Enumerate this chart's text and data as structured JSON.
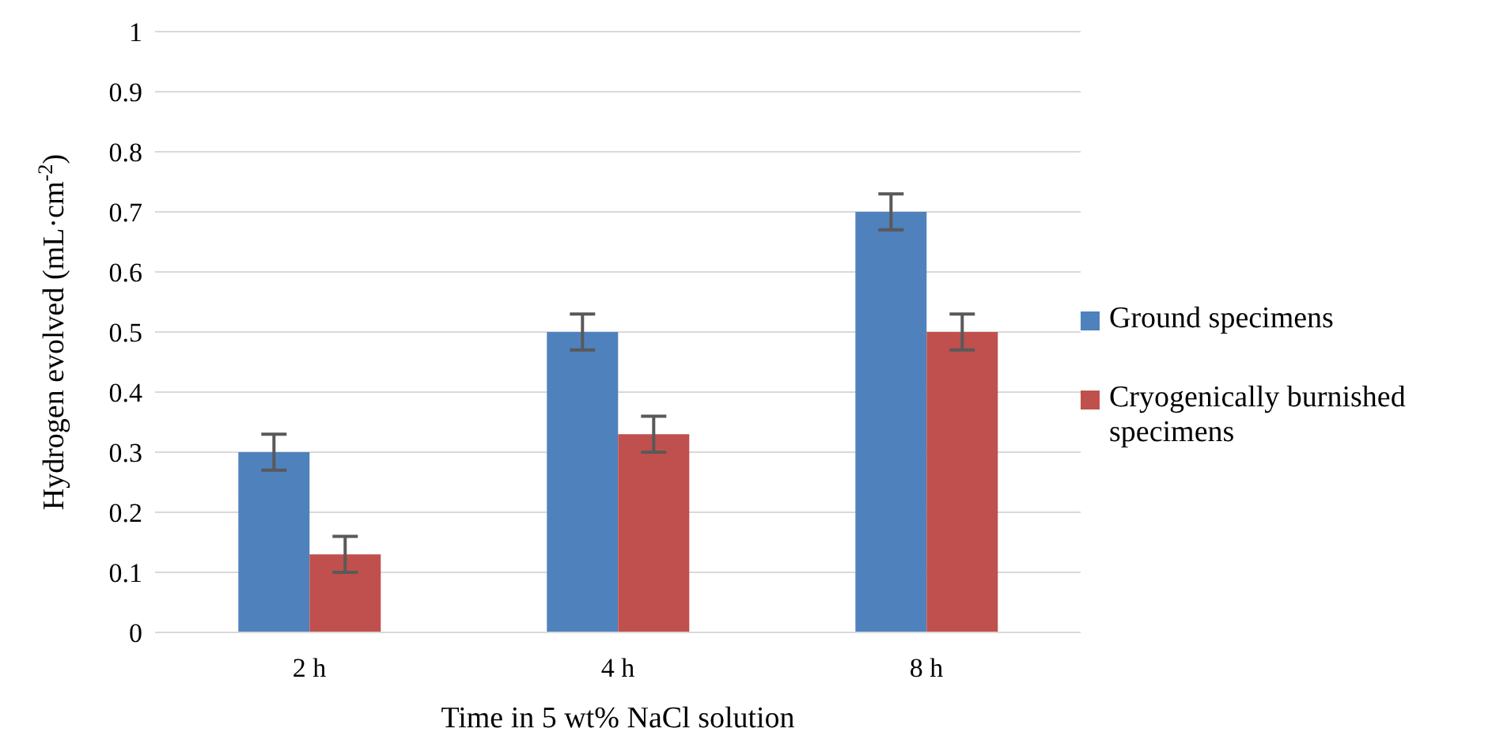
{
  "chart_data": {
    "type": "bar",
    "xlabel": "Time in 5 wt% NaCl solution",
    "ylabel": "Hydrogen evolved (mL·cm$^{-2}$)",
    "categories": [
      "2 h",
      "4 h",
      "8 h"
    ],
    "series": [
      {
        "name": "Ground specimens",
        "color": "#4f81bd",
        "values": [
          0.3,
          0.5,
          0.7
        ],
        "errors": [
          0.03,
          0.03,
          0.03
        ]
      },
      {
        "name": "Cryogenically burnished specimens",
        "color": "#c0504d",
        "values": [
          0.13,
          0.33,
          0.5
        ],
        "errors": [
          0.03,
          0.03,
          0.03
        ]
      }
    ],
    "ylim": [
      0,
      1
    ],
    "yticks": [
      0,
      0.1,
      0.2,
      0.3,
      0.4,
      0.5,
      0.6,
      0.7,
      0.8,
      0.9,
      1
    ],
    "grid": "y",
    "legend": "right"
  }
}
